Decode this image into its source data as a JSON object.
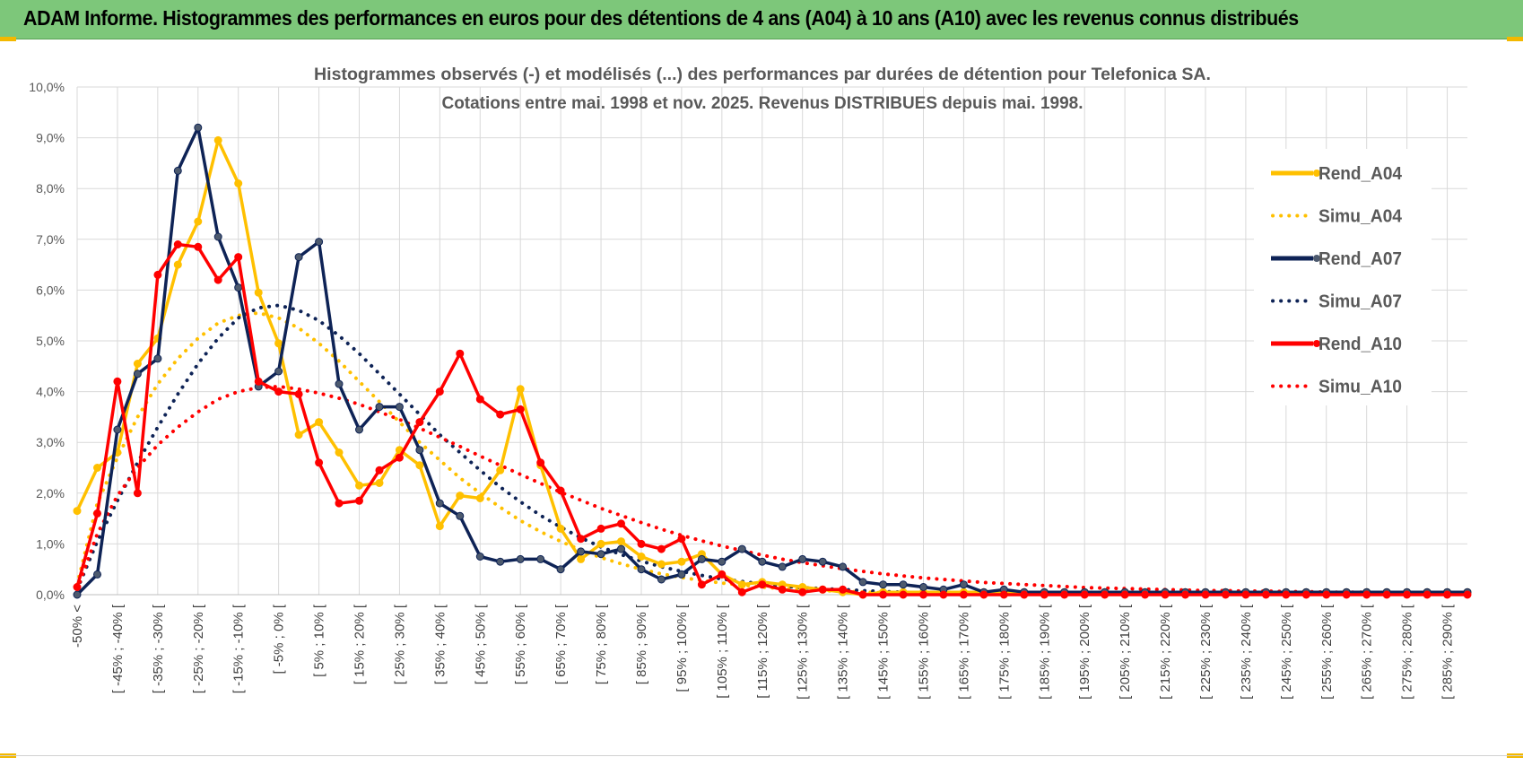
{
  "banner": {
    "title": "ADAM Informe. Histogrammes des performances en euros pour des détentions de 4 ans (A04) à 10 ans (A10) avec les revenus connus distribués"
  },
  "colors": {
    "banner": "#7dc77a",
    "A04": "#ffc000",
    "A07": "#0e2356",
    "A10": "#ff0000",
    "grid": "#d9d9d9",
    "text": "#595959"
  },
  "chart_data": {
    "type": "line",
    "title": "Histogrammes observés (-)  et modélisés (...) des performances par durées de détention pour Telefonica SA.",
    "subtitle": "Cotations entre mai. 1998 et nov. 2025.  Revenus DISTRIBUES depuis mai. 1998.",
    "xlabel": "",
    "ylabel": "",
    "ylim": [
      0,
      10
    ],
    "yticks": [
      0,
      1,
      2,
      3,
      4,
      5,
      6,
      7,
      8,
      9,
      10
    ],
    "ytick_labels": [
      "0,0%",
      "1,0%",
      "2,0%",
      "3,0%",
      "4,0%",
      "5,0%",
      "6,0%",
      "7,0%",
      "8,0%",
      "9,0%",
      "10,0%"
    ],
    "grid": true,
    "legend_position": "right",
    "categories": [
      "-50% <",
      "",
      "[ -45% ; -40% [",
      "",
      "[ -35% ; -30% [",
      "",
      "[ -25% ; -20% [",
      "",
      "[ -15% ; -10% [",
      "",
      "[ -5% ; 0% [",
      "",
      "[ 5% ; 10% [",
      "",
      "[ 15% ; 20% [",
      "",
      "[ 25% ; 30% [",
      "",
      "[ 35% ; 40% [",
      "",
      "[ 45% ; 50% [",
      "",
      "[ 55% ; 60% [",
      "",
      "[ 65% ; 70% [",
      "",
      "[ 75% ; 80% [",
      "",
      "[ 85% ; 90% [",
      "",
      "[ 95% ; 100% [",
      "",
      "[ 105% ; 110% [",
      "",
      "[ 115% ; 120% [",
      "",
      "[ 125% ; 130% [",
      "",
      "[ 135% ; 140% [",
      "",
      "[ 145% ; 150% [",
      "",
      "[ 155% ; 160% [",
      "",
      "[ 165% ; 170% [",
      "",
      "[ 175% ; 180% [",
      "",
      "[ 185% ; 190% [",
      "",
      "[ 195% ; 200% [",
      "",
      "[ 205% ; 210% [",
      "",
      "[ 215% ; 220% [",
      "",
      "[ 225% ; 230% [",
      "",
      "[ 235% ; 240% [",
      "",
      "[ 245% ; 250% [",
      "",
      "[ 255% ; 260% [",
      "",
      "[ 265% ; 270% [",
      "",
      "[ 275% ; 280% [",
      "",
      "[ 285% ; 290% [",
      ""
    ],
    "series": [
      {
        "name": "Rend_A04",
        "style": "solid",
        "color": "#ffc000",
        "values": [
          1.65,
          2.5,
          2.8,
          4.55,
          5.05,
          6.5,
          7.35,
          8.95,
          8.1,
          5.95,
          4.95,
          3.15,
          3.4,
          2.8,
          2.15,
          2.2,
          2.85,
          2.55,
          1.35,
          1.95,
          1.9,
          2.45,
          4.05,
          2.55,
          1.3,
          0.7,
          1.0,
          1.05,
          0.75,
          0.6,
          0.65,
          0.8,
          0.4,
          0.2,
          0.25,
          0.2,
          0.15,
          0.1,
          0.05,
          0.0,
          0.05,
          0.05,
          0.05,
          0.05,
          0.05,
          0.05,
          0.05,
          0.05,
          0.05,
          0.05,
          0.05,
          0.05,
          0.05,
          0.05,
          0.05,
          0.05,
          0.05,
          0.05,
          0.05,
          0.05,
          0.05,
          0.05,
          0.05,
          0.05,
          0.05,
          0.05,
          0.05,
          0.05,
          0.05,
          0.05
        ]
      },
      {
        "name": "Simu_A04",
        "style": "dotted",
        "color": "#ffc000",
        "values": [
          0.2,
          1.8,
          2.7,
          3.5,
          4.15,
          4.65,
          5.05,
          5.35,
          5.5,
          5.55,
          5.45,
          5.25,
          4.95,
          4.6,
          4.2,
          3.8,
          3.4,
          3.0,
          2.65,
          2.3,
          2.0,
          1.72,
          1.46,
          1.24,
          1.05,
          0.88,
          0.73,
          0.61,
          0.5,
          0.41,
          0.34,
          0.28,
          0.23,
          0.19,
          0.15,
          0.12,
          0.1,
          0.08,
          0.07,
          0.05,
          0.04,
          0.03,
          0.03,
          0.02,
          0.02,
          0.02,
          0.01,
          0.01,
          0.01,
          0.01,
          0.01,
          0.01,
          0.01,
          0.01,
          0.01,
          0.01,
          0.01,
          0.01,
          0.01,
          0.01,
          0.01,
          0.01,
          0.01,
          0.01,
          0.01,
          0.01,
          0.01,
          0.01,
          0.01,
          0.01
        ]
      },
      {
        "name": "Rend_A07",
        "style": "solid",
        "color": "#0e2356",
        "values": [
          0.0,
          0.4,
          3.25,
          4.35,
          4.65,
          8.35,
          9.2,
          7.05,
          6.05,
          4.1,
          4.4,
          6.65,
          6.95,
          4.15,
          3.25,
          3.7,
          3.7,
          2.85,
          1.8,
          1.55,
          0.75,
          0.65,
          0.7,
          0.7,
          0.5,
          0.85,
          0.8,
          0.9,
          0.5,
          0.3,
          0.4,
          0.7,
          0.65,
          0.9,
          0.65,
          0.55,
          0.7,
          0.65,
          0.55,
          0.25,
          0.2,
          0.2,
          0.15,
          0.1,
          0.2,
          0.05,
          0.1,
          0.05,
          0.05,
          0.05,
          0.05,
          0.05,
          0.05,
          0.05,
          0.05,
          0.05,
          0.05,
          0.05,
          0.05,
          0.05,
          0.05,
          0.05,
          0.05,
          0.05,
          0.05,
          0.05,
          0.05,
          0.05,
          0.05,
          0.05
        ]
      },
      {
        "name": "Simu_A07",
        "style": "dotted",
        "color": "#0e2356",
        "values": [
          0.1,
          1.05,
          1.85,
          2.6,
          3.3,
          3.95,
          4.55,
          5.05,
          5.45,
          5.65,
          5.7,
          5.6,
          5.4,
          5.1,
          4.75,
          4.35,
          3.95,
          3.55,
          3.15,
          2.8,
          2.45,
          2.12,
          1.83,
          1.56,
          1.33,
          1.12,
          0.94,
          0.79,
          0.66,
          0.55,
          0.46,
          0.38,
          0.31,
          0.26,
          0.21,
          0.17,
          0.14,
          0.12,
          0.1,
          0.08,
          0.06,
          0.05,
          0.04,
          0.03,
          0.03,
          0.02,
          0.02,
          0.02,
          0.01,
          0.01,
          0.01,
          0.01,
          0.01,
          0.01,
          0.01,
          0.01,
          0.01,
          0.01,
          0.01,
          0.01,
          0.01,
          0.01,
          0.01,
          0.01,
          0.01,
          0.01,
          0.01,
          0.01,
          0.01,
          0.01
        ]
      },
      {
        "name": "Rend_A10",
        "style": "solid",
        "color": "#ff0000",
        "values": [
          0.15,
          1.6,
          4.2,
          2.0,
          6.3,
          6.9,
          6.85,
          6.2,
          6.65,
          4.2,
          4.0,
          3.95,
          2.6,
          1.8,
          1.85,
          2.45,
          2.7,
          3.4,
          4.0,
          4.75,
          3.85,
          3.55,
          3.65,
          2.6,
          2.05,
          1.1,
          1.3,
          1.4,
          1.0,
          0.9,
          1.1,
          0.2,
          0.4,
          0.05,
          0.2,
          0.1,
          0.05,
          0.1,
          0.1,
          0.0,
          0.0,
          0.0,
          0.0,
          0.0,
          0.0,
          0.0,
          0.0,
          0.0,
          0.0,
          0.0,
          0.0,
          0.0,
          0.0,
          0.0,
          0.0,
          0.0,
          0.0,
          0.0,
          0.0,
          0.0,
          0.0,
          0.0,
          0.0,
          0.0,
          0.0,
          0.0,
          0.0,
          0.0,
          0.0,
          0.0
        ]
      },
      {
        "name": "Simu_A10",
        "style": "dotted",
        "color": "#ff0000",
        "values": [
          0.1,
          1.2,
          1.95,
          2.5,
          2.95,
          3.3,
          3.6,
          3.85,
          4.0,
          4.08,
          4.1,
          4.05,
          3.97,
          3.87,
          3.75,
          3.6,
          3.45,
          3.28,
          3.1,
          2.92,
          2.73,
          2.55,
          2.37,
          2.19,
          2.02,
          1.86,
          1.7,
          1.56,
          1.42,
          1.29,
          1.17,
          1.06,
          0.96,
          0.87,
          0.78,
          0.7,
          0.63,
          0.57,
          0.51,
          0.46,
          0.41,
          0.37,
          0.33,
          0.3,
          0.27,
          0.24,
          0.22,
          0.2,
          0.18,
          0.16,
          0.14,
          0.13,
          0.12,
          0.11,
          0.1,
          0.09,
          0.08,
          0.08,
          0.07,
          0.07,
          0.06,
          0.06,
          0.05,
          0.05,
          0.05,
          0.04,
          0.04,
          0.04,
          0.03,
          0.03
        ]
      }
    ]
  }
}
